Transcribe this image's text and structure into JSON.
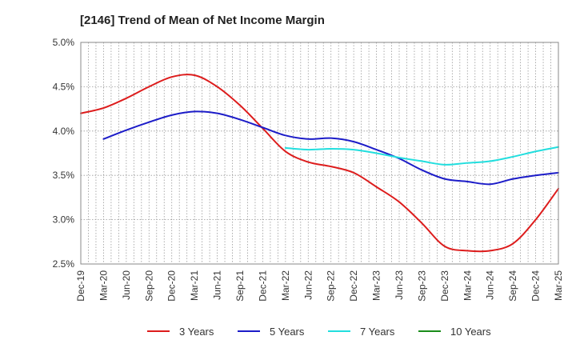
{
  "chart_data": {
    "type": "line",
    "title": "[2146]  Trend of Mean of Net Income Margin",
    "xlabel": "",
    "ylabel": "",
    "x_ticks": [
      "Dec-19",
      "Mar-20",
      "Jun-20",
      "Sep-20",
      "Dec-20",
      "Mar-21",
      "Jun-21",
      "Sep-21",
      "Dec-21",
      "Mar-22",
      "Jun-22",
      "Sep-22",
      "Dec-22",
      "Mar-23",
      "Jun-23",
      "Sep-23",
      "Dec-23",
      "Mar-24",
      "Jun-24",
      "Sep-24",
      "Dec-24",
      "Mar-25"
    ],
    "y_ticks": [
      "2.5%",
      "3.0%",
      "3.5%",
      "4.0%",
      "4.5%",
      "5.0%"
    ],
    "ylim": [
      2.5,
      5.0
    ],
    "grid": true,
    "legend_position": "bottom",
    "series": [
      {
        "name": "3 Years",
        "color": "#dd1c1c",
        "values": [
          4.2,
          4.26,
          4.37,
          4.5,
          4.61,
          4.63,
          4.5,
          4.29,
          4.03,
          3.77,
          3.65,
          3.6,
          3.53,
          3.37,
          3.2,
          2.96,
          2.7,
          2.65,
          2.65,
          2.73,
          3.0,
          3.35
        ]
      },
      {
        "name": "5 Years",
        "color": "#1c1cc8",
        "values": [
          null,
          3.91,
          4.01,
          4.1,
          4.18,
          4.22,
          4.2,
          4.13,
          4.04,
          3.95,
          3.91,
          3.92,
          3.88,
          3.79,
          3.69,
          3.56,
          3.46,
          3.43,
          3.4,
          3.46,
          3.5,
          3.53
        ]
      },
      {
        "name": "7 Years",
        "color": "#22dede",
        "values": [
          null,
          null,
          null,
          null,
          null,
          null,
          null,
          null,
          null,
          3.81,
          3.79,
          3.8,
          3.79,
          3.75,
          3.7,
          3.66,
          3.62,
          3.64,
          3.66,
          3.71,
          3.77,
          3.82
        ]
      },
      {
        "name": "10 Years",
        "color": "#1a8c1a",
        "values": [
          null,
          null,
          null,
          null,
          null,
          null,
          null,
          null,
          null,
          null,
          null,
          null,
          null,
          null,
          null,
          null,
          null,
          null,
          null,
          null,
          null,
          null
        ]
      }
    ]
  }
}
